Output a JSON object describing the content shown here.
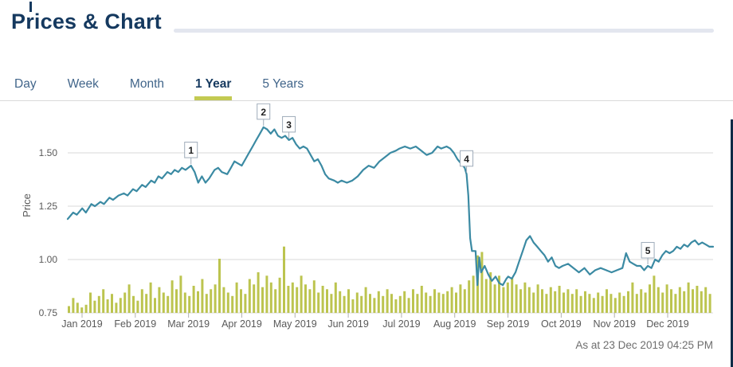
{
  "page": {
    "title": "Prices & Chart",
    "as_at": "As at 23 Dec 2019 04:25 PM"
  },
  "tabs": [
    {
      "label": "Day",
      "active": false
    },
    {
      "label": "Week",
      "active": false
    },
    {
      "label": "Month",
      "active": false
    },
    {
      "label": "1 Year",
      "active": true
    },
    {
      "label": "5 Years",
      "active": false
    }
  ],
  "colors": {
    "navy": "#15395f",
    "tab_inactive": "#41658a",
    "accent_olive": "#c3ca52",
    "volume_olive": "#bcc44f",
    "line_teal": "#3b8aa3",
    "gridline": "#d9d9d9",
    "axis_text": "#595959",
    "tick_mark": "#b0b0b0",
    "marker_border": "#9eabb9",
    "marker_text": "#1f1f1f",
    "footer_text": "#6e6e6e"
  },
  "chart_data": {
    "type": "line+bar",
    "title": "",
    "xlabel": "",
    "ylabel": "Price",
    "y_ticks": [
      1.5,
      1.25,
      1.0,
      0.75
    ],
    "ylim": [
      0.73,
      1.7
    ],
    "grid": "horizontal",
    "x_tick_labels": [
      "Jan 2019",
      "Feb 2019",
      "Mar 2019",
      "Apr 2019",
      "May 2019",
      "Jun 2019",
      "Jul 2019",
      "Aug 2019",
      "Sep 2019",
      "Oct 2019",
      "Nov 2019",
      "Dec 2019"
    ],
    "price_series": {
      "name": "Price",
      "points": [
        [
          0,
          1.19
        ],
        [
          3,
          1.22
        ],
        [
          5,
          1.21
        ],
        [
          8,
          1.24
        ],
        [
          10,
          1.22
        ],
        [
          13,
          1.26
        ],
        [
          15,
          1.25
        ],
        [
          18,
          1.27
        ],
        [
          20,
          1.26
        ],
        [
          23,
          1.29
        ],
        [
          25,
          1.28
        ],
        [
          28,
          1.3
        ],
        [
          31,
          1.31
        ],
        [
          33,
          1.3
        ],
        [
          36,
          1.33
        ],
        [
          38,
          1.32
        ],
        [
          41,
          1.35
        ],
        [
          43,
          1.34
        ],
        [
          46,
          1.37
        ],
        [
          48,
          1.36
        ],
        [
          50,
          1.39
        ],
        [
          52,
          1.38
        ],
        [
          55,
          1.41
        ],
        [
          57,
          1.4
        ],
        [
          59,
          1.42
        ],
        [
          61,
          1.41
        ],
        [
          63,
          1.43
        ],
        [
          65,
          1.42
        ],
        [
          68,
          1.44
        ],
        [
          70,
          1.41
        ],
        [
          72,
          1.36
        ],
        [
          74,
          1.39
        ],
        [
          76,
          1.36
        ],
        [
          78,
          1.38
        ],
        [
          81,
          1.42
        ],
        [
          83,
          1.43
        ],
        [
          85,
          1.41
        ],
        [
          88,
          1.4
        ],
        [
          90,
          1.43
        ],
        [
          92,
          1.46
        ],
        [
          94,
          1.45
        ],
        [
          96,
          1.44
        ],
        [
          98,
          1.47
        ],
        [
          100,
          1.5
        ],
        [
          102,
          1.53
        ],
        [
          104,
          1.56
        ],
        [
          106,
          1.59
        ],
        [
          108,
          1.62
        ],
        [
          110,
          1.61
        ],
        [
          112,
          1.59
        ],
        [
          114,
          1.61
        ],
        [
          116,
          1.58
        ],
        [
          118,
          1.57
        ],
        [
          120,
          1.58
        ],
        [
          122,
          1.56
        ],
        [
          124,
          1.57
        ],
        [
          126,
          1.54
        ],
        [
          128,
          1.52
        ],
        [
          130,
          1.53
        ],
        [
          132,
          1.52
        ],
        [
          134,
          1.49
        ],
        [
          136,
          1.46
        ],
        [
          138,
          1.47
        ],
        [
          140,
          1.44
        ],
        [
          142,
          1.4
        ],
        [
          144,
          1.38
        ],
        [
          147,
          1.37
        ],
        [
          149,
          1.36
        ],
        [
          151,
          1.37
        ],
        [
          154,
          1.36
        ],
        [
          157,
          1.37
        ],
        [
          160,
          1.39
        ],
        [
          163,
          1.42
        ],
        [
          166,
          1.44
        ],
        [
          169,
          1.43
        ],
        [
          172,
          1.46
        ],
        [
          175,
          1.48
        ],
        [
          178,
          1.5
        ],
        [
          181,
          1.51
        ],
        [
          183,
          1.52
        ],
        [
          186,
          1.53
        ],
        [
          189,
          1.52
        ],
        [
          192,
          1.53
        ],
        [
          195,
          1.51
        ],
        [
          198,
          1.49
        ],
        [
          201,
          1.5
        ],
        [
          204,
          1.53
        ],
        [
          206,
          1.52
        ],
        [
          209,
          1.53
        ],
        [
          211,
          1.52
        ],
        [
          213,
          1.5
        ],
        [
          215,
          1.47
        ],
        [
          217,
          1.45
        ],
        [
          219,
          1.43
        ],
        [
          220,
          1.4
        ],
        [
          221,
          1.3
        ],
        [
          222,
          1.1
        ],
        [
          223,
          1.04
        ],
        [
          225,
          1.04
        ],
        [
          226,
          0.88
        ],
        [
          227,
          1.01
        ],
        [
          228,
          0.94
        ],
        [
          230,
          0.97
        ],
        [
          232,
          0.93
        ],
        [
          234,
          0.9
        ],
        [
          236,
          0.92
        ],
        [
          238,
          0.89
        ],
        [
          240,
          0.88
        ],
        [
          242,
          0.91
        ],
        [
          243,
          0.92
        ],
        [
          245,
          0.91
        ],
        [
          247,
          0.94
        ],
        [
          249,
          0.99
        ],
        [
          251,
          1.04
        ],
        [
          253,
          1.09
        ],
        [
          255,
          1.11
        ],
        [
          257,
          1.08
        ],
        [
          259,
          1.06
        ],
        [
          261,
          1.04
        ],
        [
          263,
          1.02
        ],
        [
          265,
          0.99
        ],
        [
          267,
          1.01
        ],
        [
          269,
          0.97
        ],
        [
          271,
          0.96
        ],
        [
          273,
          0.97
        ],
        [
          276,
          0.98
        ],
        [
          279,
          0.96
        ],
        [
          282,
          0.94
        ],
        [
          285,
          0.96
        ],
        [
          288,
          0.93
        ],
        [
          291,
          0.95
        ],
        [
          294,
          0.96
        ],
        [
          297,
          0.95
        ],
        [
          300,
          0.94
        ],
        [
          303,
          0.95
        ],
        [
          306,
          0.96
        ],
        [
          308,
          1.03
        ],
        [
          310,
          0.99
        ],
        [
          312,
          0.98
        ],
        [
          314,
          0.97
        ],
        [
          316,
          0.97
        ],
        [
          318,
          0.95
        ],
        [
          320,
          0.97
        ],
        [
          322,
          0.96
        ],
        [
          324,
          1.0
        ],
        [
          326,
          0.99
        ],
        [
          328,
          1.02
        ],
        [
          330,
          1.04
        ],
        [
          332,
          1.03
        ],
        [
          334,
          1.04
        ],
        [
          336,
          1.06
        ],
        [
          338,
          1.05
        ],
        [
          340,
          1.07
        ],
        [
          342,
          1.06
        ],
        [
          344,
          1.08
        ],
        [
          346,
          1.09
        ],
        [
          348,
          1.07
        ],
        [
          350,
          1.08
        ],
        [
          352,
          1.07
        ],
        [
          354,
          1.06
        ],
        [
          356,
          1.06
        ]
      ]
    },
    "volume_series": {
      "name": "Volume",
      "values": [
        0.1,
        0.22,
        0.15,
        0.08,
        0.12,
        0.3,
        0.18,
        0.25,
        0.35,
        0.2,
        0.28,
        0.15,
        0.22,
        0.3,
        0.42,
        0.25,
        0.18,
        0.35,
        0.28,
        0.45,
        0.22,
        0.38,
        0.3,
        0.25,
        0.48,
        0.35,
        0.55,
        0.3,
        0.25,
        0.4,
        0.32,
        0.5,
        0.28,
        0.35,
        0.42,
        0.8,
        0.38,
        0.3,
        0.25,
        0.45,
        0.35,
        0.28,
        0.5,
        0.42,
        0.6,
        0.38,
        0.55,
        0.45,
        0.35,
        0.52,
        0.98,
        0.4,
        0.45,
        0.38,
        0.55,
        0.42,
        0.35,
        0.48,
        0.3,
        0.4,
        0.35,
        0.28,
        0.45,
        0.32,
        0.25,
        0.35,
        0.2,
        0.3,
        0.25,
        0.38,
        0.28,
        0.22,
        0.32,
        0.25,
        0.35,
        0.28,
        0.2,
        0.25,
        0.32,
        0.22,
        0.35,
        0.28,
        0.4,
        0.3,
        0.25,
        0.35,
        0.3,
        0.28,
        0.32,
        0.38,
        0.3,
        0.42,
        0.35,
        0.48,
        0.55,
        0.85,
        0.9,
        0.5,
        0.6,
        0.42,
        0.55,
        0.38,
        0.45,
        0.52,
        0.42,
        0.35,
        0.45,
        0.38,
        0.3,
        0.42,
        0.35,
        0.28,
        0.38,
        0.32,
        0.4,
        0.3,
        0.35,
        0.28,
        0.35,
        0.25,
        0.32,
        0.28,
        0.22,
        0.3,
        0.25,
        0.35,
        0.28,
        0.22,
        0.3,
        0.25,
        0.32,
        0.45,
        0.28,
        0.35,
        0.3,
        0.42,
        0.55,
        0.38,
        0.3,
        0.42,
        0.35,
        0.28,
        0.38,
        0.32,
        0.45,
        0.35,
        0.4,
        0.32,
        0.38,
        0.28
      ]
    },
    "markers": [
      {
        "label": "1",
        "day": 68,
        "price": 1.44
      },
      {
        "label": "2",
        "day": 108,
        "price": 1.62
      },
      {
        "label": "3",
        "day": 122,
        "price": 1.56
      },
      {
        "label": "4",
        "day": 220,
        "price": 1.4
      },
      {
        "label": "5",
        "day": 320,
        "price": 0.97
      }
    ]
  }
}
